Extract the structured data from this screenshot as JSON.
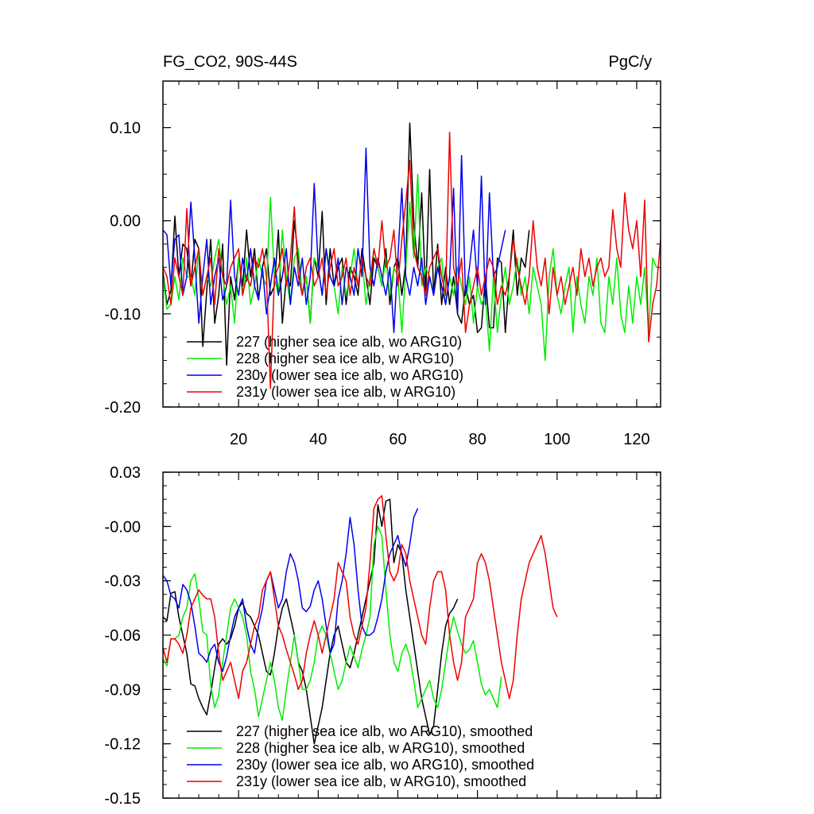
{
  "chart_data": [
    {
      "type": "line",
      "title": "FG_CO2, 90S-44S",
      "units": "PgC/y",
      "xlim": [
        1,
        126
      ],
      "ylim": [
        -0.2,
        0.15
      ],
      "xticks": [
        20,
        40,
        60,
        80,
        100,
        120
      ],
      "xtick_labels": [
        "20",
        "40",
        "60",
        "80",
        "100",
        "120"
      ],
      "yticks": [
        0.1,
        0.0,
        -0.1,
        -0.2
      ],
      "ytick_labels": [
        "0.10",
        "0.00",
        "-0.10",
        "-0.20"
      ],
      "legend_position": "bottom-left",
      "series": [
        {
          "name": "227 (higher sea ice alb, wo ARG10)",
          "color": "#000000",
          "values": [
            -0.055,
            -0.09,
            -0.075,
            0.005,
            -0.06,
            -0.025,
            -0.03,
            -0.07,
            -0.02,
            -0.03,
            -0.135,
            -0.075,
            -0.02,
            -0.11,
            -0.08,
            -0.025,
            -0.155,
            -0.06,
            -0.085,
            -0.04,
            -0.07,
            -0.01,
            -0.06,
            -0.03,
            -0.085,
            -0.05,
            -0.03,
            -0.08,
            -0.07,
            -0.01,
            -0.11,
            -0.06,
            -0.07,
            0.0,
            -0.04,
            -0.08,
            -0.06,
            -0.11,
            -0.04,
            -0.06,
            0.01,
            -0.09,
            -0.03,
            -0.07,
            -0.05,
            -0.04,
            -0.09,
            -0.05,
            -0.06,
            -0.08,
            -0.03,
            -0.06,
            -0.09,
            -0.04,
            -0.05,
            -0.07,
            -0.03,
            -0.09,
            -0.05,
            -0.04,
            -0.08,
            -0.045,
            0.105,
            0.0,
            -0.05,
            0.03,
            -0.08,
            0.055,
            -0.08,
            -0.025,
            -0.09,
            -0.05,
            -0.09,
            -0.06,
            -0.1,
            -0.11,
            -0.07,
            -0.09,
            -0.08,
            -0.12,
            -0.115,
            -0.06,
            -0.115,
            -0.115,
            -0.04,
            -0.045,
            -0.12,
            -0.06,
            -0.01,
            -0.08,
            -0.04,
            -0.05,
            -0.01
          ]
        },
        {
          "name": "228 (higher sea ice alb, w ARG10)",
          "color": "#00ee00",
          "values": [
            -0.06,
            -0.095,
            -0.09,
            -0.06,
            -0.085,
            -0.04,
            -0.06,
            -0.06,
            -0.08,
            -0.03,
            -0.08,
            -0.06,
            -0.07,
            -0.04,
            -0.02,
            -0.06,
            -0.09,
            -0.07,
            -0.11,
            -0.04,
            -0.08,
            -0.04,
            -0.09,
            -0.07,
            -0.04,
            -0.06,
            -0.07,
            0.025,
            -0.06,
            -0.08,
            -0.01,
            -0.06,
            -0.09,
            -0.04,
            -0.03,
            -0.08,
            -0.06,
            -0.11,
            -0.04,
            -0.05,
            -0.08,
            -0.03,
            -0.06,
            -0.07,
            -0.1,
            -0.05,
            -0.08,
            -0.06,
            -0.03,
            -0.07,
            -0.04,
            -0.09,
            -0.06,
            -0.03,
            -0.05,
            -0.07,
            -0.04,
            -0.08,
            -0.05,
            -0.06,
            -0.12,
            -0.05,
            0.02,
            -0.04,
            0.05,
            -0.07,
            -0.05,
            -0.06,
            -0.08,
            -0.05,
            -0.04,
            -0.09,
            -0.06,
            -0.08,
            -0.05,
            -0.07,
            -0.09,
            -0.06,
            -0.11,
            -0.07,
            -0.09,
            -0.08,
            -0.14,
            -0.06,
            -0.12,
            -0.08,
            -0.05,
            -0.09,
            -0.07,
            -0.04,
            -0.08,
            -0.06,
            -0.1,
            -0.05,
            -0.07,
            -0.09,
            -0.15,
            -0.06,
            -0.03,
            -0.08,
            -0.1,
            -0.07,
            -0.05,
            -0.12,
            -0.06,
            -0.09,
            -0.11,
            -0.06,
            -0.08,
            -0.04,
            -0.11,
            -0.12,
            -0.06,
            -0.09,
            -0.04,
            -0.1,
            -0.12,
            -0.07,
            -0.11,
            -0.06,
            -0.09,
            -0.05,
            -0.12,
            -0.04,
            -0.05
          ]
        },
        {
          "name": "230y (lower sea ice alb, wo ARG10)",
          "color": "#0000ee",
          "values": [
            -0.01,
            -0.015,
            -0.07,
            -0.02,
            -0.015,
            -0.08,
            -0.06,
            0.02,
            -0.04,
            -0.11,
            -0.06,
            -0.02,
            -0.09,
            -0.06,
            -0.04,
            -0.085,
            -0.07,
            0.022,
            -0.06,
            -0.08,
            -0.04,
            -0.065,
            -0.03,
            -0.07,
            -0.085,
            -0.05,
            -0.1,
            -0.07,
            -0.04,
            -0.08,
            -0.06,
            -0.03,
            -0.09,
            -0.05,
            -0.07,
            -0.04,
            -0.09,
            -0.06,
            0.04,
            -0.05,
            -0.08,
            -0.03,
            -0.06,
            -0.07,
            -0.04,
            -0.09,
            -0.05,
            -0.06,
            -0.08,
            -0.03,
            -0.06,
            0.078,
            -0.05,
            -0.07,
            -0.04,
            -0.06,
            -0.08,
            -0.05,
            -0.12,
            -0.04,
            0.035,
            -0.06,
            -0.08,
            -0.05,
            -0.07,
            -0.04,
            -0.09,
            -0.06,
            -0.08,
            -0.05,
            -0.07,
            -0.09,
            -0.06,
            0.035,
            -0.1,
            0.07,
            -0.08,
            -0.05,
            -0.01,
            -0.07,
            0.048,
            -0.09,
            0.03,
            -0.06,
            -0.05,
            -0.03,
            -0.01
          ]
        },
        {
          "name": "231y (lower sea ice alb, w ARG10)",
          "color": "#ee0000",
          "values": [
            -0.05,
            -0.06,
            -0.09,
            -0.04,
            -0.06,
            -0.08,
            0.013,
            -0.07,
            -0.05,
            -0.03,
            -0.08,
            -0.06,
            -0.04,
            -0.09,
            -0.03,
            -0.06,
            -0.07,
            -0.05,
            -0.04,
            -0.03,
            -0.08,
            -0.06,
            -0.07,
            -0.04,
            -0.05,
            -0.03,
            -0.06,
            -0.18,
            -0.06,
            -0.05,
            -0.03,
            -0.07,
            -0.04,
            0.015,
            -0.06,
            -0.08,
            -0.05,
            -0.04,
            -0.07,
            -0.06,
            -0.04,
            -0.08,
            -0.05,
            -0.03,
            -0.07,
            -0.06,
            -0.04,
            -0.08,
            -0.05,
            -0.07,
            -0.04,
            -0.06,
            -0.07,
            -0.03,
            -0.05,
            0.0,
            -0.05,
            -0.04,
            -0.01,
            -0.07,
            -0.02,
            0.02,
            0.065,
            -0.03,
            -0.05,
            -0.06,
            -0.08,
            -0.05,
            -0.04,
            -0.03,
            -0.06,
            -0.08,
            0.095,
            -0.05,
            -0.07,
            -0.04,
            -0.12,
            -0.09,
            -0.07,
            -0.05,
            -0.08,
            -0.06,
            -0.04,
            -0.05,
            -0.09,
            -0.07,
            -0.08,
            -0.06,
            -0.02,
            -0.05,
            -0.07,
            -0.09,
            -0.06,
            0.0,
            -0.05,
            -0.07,
            -0.04,
            -0.1,
            -0.05,
            -0.08,
            -0.06,
            -0.09,
            -0.07,
            -0.05,
            -0.08,
            -0.03,
            -0.06,
            -0.04,
            -0.07,
            -0.05,
            -0.04,
            -0.06,
            -0.05,
            0.012,
            -0.03,
            -0.05,
            0.03,
            -0.01,
            -0.03,
            0.0,
            -0.06,
            0.022,
            -0.13,
            -0.09,
            -0.07,
            -0.02
          ]
        }
      ]
    },
    {
      "type": "line",
      "title": "",
      "xlim": [
        1,
        126
      ],
      "ylim": [
        -0.15,
        0.03
      ],
      "yticks": [
        0.03,
        0.0,
        -0.03,
        -0.06,
        -0.09,
        -0.12,
        -0.15
      ],
      "ytick_labels": [
        "0.03",
        "-0.00",
        "-0.03",
        "-0.06",
        "-0.09",
        "-0.12",
        "-0.15"
      ],
      "legend_position": "bottom-left",
      "series": [
        {
          "name": "227 (higher sea ice alb, wo ARG10), smoothed",
          "color": "#000000",
          "values": [
            -0.05,
            -0.052,
            -0.037,
            -0.036,
            -0.05,
            -0.06,
            -0.07,
            -0.087,
            -0.088,
            -0.095,
            -0.1,
            -0.104,
            -0.092,
            -0.078,
            -0.065,
            -0.062,
            -0.065,
            -0.062,
            -0.055,
            -0.045,
            -0.042,
            -0.048,
            -0.05,
            -0.055,
            -0.06,
            -0.07,
            -0.08,
            -0.082,
            -0.07,
            -0.055,
            -0.045,
            -0.04,
            -0.05,
            -0.06,
            -0.075,
            -0.08,
            -0.09,
            -0.105,
            -0.12,
            -0.11,
            -0.1,
            -0.085,
            -0.07,
            -0.06,
            -0.055,
            -0.065,
            -0.075,
            -0.078,
            -0.07,
            -0.06,
            -0.05,
            -0.04,
            -0.03,
            -0.02,
            0.012,
            0.0,
            0.014,
            0.015,
            -0.02,
            -0.01,
            -0.015,
            -0.035,
            -0.05,
            -0.065,
            -0.08,
            -0.095,
            -0.105,
            -0.115,
            -0.11,
            -0.09,
            -0.07,
            -0.055,
            -0.048,
            -0.045,
            -0.04
          ]
        },
        {
          "name": "228 (higher sea ice alb, w ARG10), smoothed",
          "color": "#00ee00",
          "values": [
            -0.073,
            -0.077,
            -0.062,
            -0.062,
            -0.06,
            -0.05,
            -0.045,
            -0.03,
            -0.026,
            -0.04,
            -0.058,
            -0.06,
            -0.088,
            -0.1,
            -0.093,
            -0.075,
            -0.06,
            -0.045,
            -0.04,
            -0.045,
            -0.05,
            -0.06,
            -0.08,
            -0.09,
            -0.105,
            -0.095,
            -0.085,
            -0.075,
            -0.085,
            -0.1,
            -0.107,
            -0.09,
            -0.075,
            -0.06,
            -0.075,
            -0.09,
            -0.09,
            -0.085,
            -0.075,
            -0.06,
            -0.055,
            -0.06,
            -0.07,
            -0.08,
            -0.09,
            -0.085,
            -0.075,
            -0.066,
            -0.072,
            -0.078,
            -0.068,
            -0.06,
            -0.05,
            -0.01,
            0.0,
            -0.005,
            -0.035,
            -0.06,
            -0.075,
            -0.08,
            -0.07,
            -0.065,
            -0.072,
            -0.085,
            -0.1,
            -0.095,
            -0.09,
            -0.085,
            -0.095,
            -0.1,
            -0.09,
            -0.075,
            -0.06,
            -0.05,
            -0.058,
            -0.065,
            -0.07,
            -0.068,
            -0.063,
            -0.075,
            -0.087,
            -0.093,
            -0.09,
            -0.095,
            -0.1,
            -0.083
          ]
        },
        {
          "name": "230y (lower sea ice alb, wo ARG10), smoothed",
          "color": "#0000ee",
          "values": [
            -0.027,
            -0.03,
            -0.038,
            -0.04,
            -0.045,
            -0.032,
            -0.035,
            -0.042,
            -0.055,
            -0.07,
            -0.072,
            -0.075,
            -0.068,
            -0.065,
            -0.075,
            -0.08,
            -0.072,
            -0.06,
            -0.05,
            -0.045,
            -0.04,
            -0.055,
            -0.065,
            -0.07,
            -0.055,
            -0.045,
            -0.03,
            -0.025,
            -0.035,
            -0.045,
            -0.04,
            -0.025,
            -0.015,
            -0.02,
            -0.03,
            -0.045,
            -0.047,
            -0.044,
            -0.035,
            -0.03,
            -0.04,
            -0.055,
            -0.07,
            -0.065,
            -0.04,
            -0.03,
            -0.015,
            0.005,
            -0.01,
            -0.035,
            -0.055,
            -0.06,
            -0.06,
            -0.058,
            -0.05,
            -0.04,
            -0.025,
            -0.015,
            -0.01,
            -0.005,
            -0.015,
            -0.022,
            -0.01,
            0.005,
            0.01
          ]
        },
        {
          "name": "231y (lower sea ice alb, w ARG10), smoothed",
          "color": "#ee0000",
          "values": [
            -0.067,
            -0.075,
            -0.062,
            -0.062,
            -0.065,
            -0.07,
            -0.06,
            -0.045,
            -0.04,
            -0.035,
            -0.038,
            -0.04,
            -0.04,
            -0.05,
            -0.07,
            -0.085,
            -0.08,
            -0.075,
            -0.085,
            -0.095,
            -0.08,
            -0.075,
            -0.065,
            -0.055,
            -0.05,
            -0.035,
            -0.03,
            -0.025,
            -0.04,
            -0.055,
            -0.06,
            -0.068,
            -0.075,
            -0.082,
            -0.09,
            -0.085,
            -0.07,
            -0.06,
            -0.052,
            -0.06,
            -0.07,
            -0.06,
            -0.05,
            -0.04,
            -0.02,
            -0.025,
            -0.03,
            -0.05,
            -0.06,
            -0.065,
            -0.055,
            -0.045,
            -0.02,
            0.01,
            0.015,
            0.017,
            -0.005,
            -0.025,
            -0.03,
            -0.025,
            -0.01,
            -0.015,
            -0.03,
            -0.04,
            -0.05,
            -0.06,
            -0.065,
            -0.045,
            -0.03,
            -0.025,
            -0.025,
            -0.035,
            -0.06,
            -0.075,
            -0.085,
            -0.075,
            -0.05,
            -0.045,
            -0.04,
            -0.02,
            -0.015,
            -0.02,
            -0.03,
            -0.045,
            -0.06,
            -0.075,
            -0.085,
            -0.095,
            -0.085,
            -0.06,
            -0.04,
            -0.03,
            -0.02,
            -0.015,
            -0.01,
            -0.005,
            -0.015,
            -0.03,
            -0.045,
            -0.05
          ]
        }
      ]
    }
  ]
}
